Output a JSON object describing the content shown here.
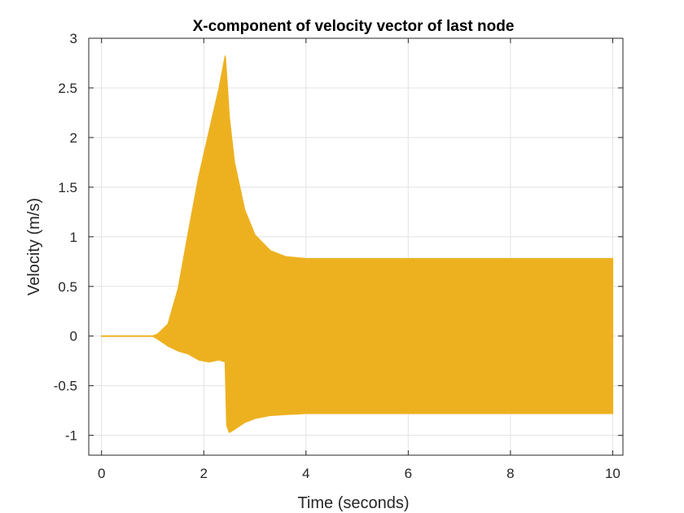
{
  "chart_data": {
    "type": "area",
    "title": "X-component of velocity vector of last node",
    "xlabel": "Time (seconds)",
    "ylabel": "Velocity (m/s)",
    "xlim": [
      -0.25,
      10.2
    ],
    "ylim": [
      -1.2,
      3
    ],
    "xticks": [
      0,
      2,
      4,
      6,
      8,
      10
    ],
    "xtick_labels": [
      "0",
      "2",
      "4",
      "6",
      "8",
      "10"
    ],
    "yticks": [
      -1,
      -0.5,
      0,
      0.5,
      1,
      1.5,
      2,
      2.5,
      3
    ],
    "ytick_labels": [
      "-1",
      "-0.5",
      "0",
      "0.5",
      "1",
      "1.5",
      "2",
      "2.5",
      "3"
    ],
    "grid": true,
    "series_color": "#EDB120",
    "series": [
      {
        "description": "oscillation envelope of the velocity signal",
        "x": [
          0,
          1.0,
          1.1,
          1.3,
          1.5,
          1.7,
          1.9,
          2.1,
          2.3,
          2.42,
          2.45,
          2.5,
          2.6,
          2.8,
          3.0,
          3.3,
          3.6,
          4.0,
          5.0,
          6.0,
          8.0,
          10.0
        ],
        "upper": [
          0,
          0,
          0.02,
          0.12,
          0.48,
          1.05,
          1.6,
          2.05,
          2.5,
          2.82,
          2.6,
          2.2,
          1.75,
          1.27,
          1.02,
          0.86,
          0.8,
          0.78,
          0.78,
          0.78,
          0.78,
          0.78
        ],
        "lower": [
          0,
          0,
          -0.03,
          -0.1,
          -0.15,
          -0.18,
          -0.24,
          -0.26,
          -0.24,
          -0.26,
          -0.9,
          -0.97,
          -0.94,
          -0.87,
          -0.83,
          -0.8,
          -0.79,
          -0.78,
          -0.78,
          -0.78,
          -0.78,
          -0.78
        ]
      }
    ]
  }
}
